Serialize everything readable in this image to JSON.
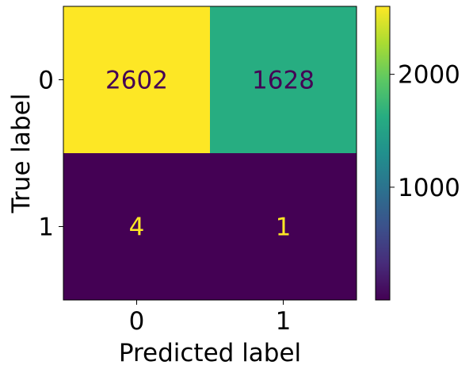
{
  "chart_data": {
    "type": "heatmap",
    "title": "",
    "xlabel": "Predicted label",
    "ylabel": "True label",
    "x_categories": [
      "0",
      "1"
    ],
    "y_categories": [
      "0",
      "1"
    ],
    "values": [
      [
        2602,
        1628
      ],
      [
        4,
        1
      ]
    ],
    "colormap": "viridis",
    "colorbar": {
      "min": 1,
      "max": 2602,
      "ticks": [
        1000,
        2000
      ],
      "tick_labels": [
        "1000",
        "2000"
      ]
    },
    "grid": false,
    "legend": "none"
  }
}
